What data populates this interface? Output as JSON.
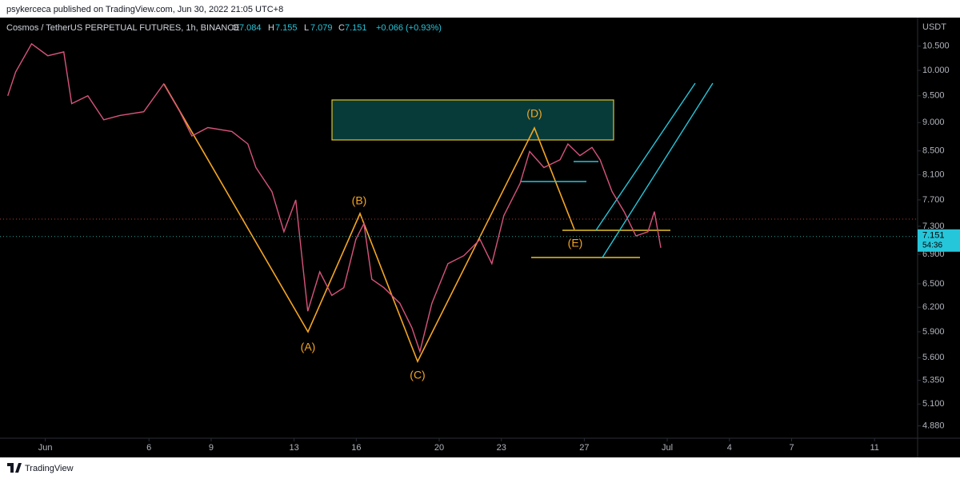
{
  "header": {
    "publisher": "psykerceca published on TradingView.com, Jun 30, 2022 21:05 UTC+8"
  },
  "footer": {
    "brand": "TradingView"
  },
  "chart_data": {
    "type": "line",
    "title": "Cosmos / TetherUS PERPETUAL FUTURES, 1h, BINANCE",
    "ohlc": {
      "o_label": "O",
      "o": 7.084,
      "h_label": "H",
      "h": 7.155,
      "l_label": "L",
      "l": 7.079,
      "c_label": "C",
      "c": 7.151,
      "change": "+0.066 (+0.93%)"
    },
    "y_unit": "USDT",
    "last_price": 7.151,
    "countdown": "54:36",
    "color": "#d7547c",
    "log_scale": true,
    "x": [
      -0.81,
      -0.43,
      0.34,
      1.12,
      1.89,
      2.27,
      3.05,
      3.82,
      4.59,
      5.75,
      6.71,
      7.49,
      8.07,
      8.84,
      10.0,
      10.77,
      11.16,
      11.93,
      12.51,
      13.08,
      13.66,
      14.24,
      14.82,
      15.4,
      15.98,
      16.37,
      16.75,
      17.33,
      18.1,
      18.68,
      19.07,
      19.65,
      20.42,
      21.19,
      21.97,
      22.54,
      23.12,
      23.9,
      24.36,
      25.05,
      25.83,
      26.21,
      26.79,
      27.37,
      27.76,
      28.34,
      28.92,
      29.49,
      30.07,
      30.38,
      30.69
    ],
    "values": [
      9.5,
      9.97,
      10.55,
      10.3,
      10.38,
      9.35,
      9.5,
      9.05,
      9.13,
      9.2,
      9.73,
      9.2,
      8.76,
      8.91,
      8.84,
      8.62,
      8.22,
      7.83,
      7.22,
      7.7,
      6.15,
      6.66,
      6.35,
      6.45,
      7.11,
      7.34,
      6.56,
      6.45,
      6.25,
      5.95,
      5.67,
      6.25,
      6.77,
      6.88,
      7.11,
      6.77,
      7.46,
      7.96,
      8.49,
      8.22,
      8.35,
      8.62,
      8.42,
      8.56,
      8.35,
      7.83,
      7.52,
      7.16,
      7.22,
      7.52,
      6.99
    ],
    "xlim": [
      -0.8,
      43
    ],
    "xticks": [
      {
        "value": 1,
        "label": "Jun"
      },
      6,
      9,
      13,
      16,
      20,
      23,
      27,
      {
        "value": 31,
        "label": "Jul"
      },
      {
        "value": 34,
        "label": "4"
      },
      {
        "value": 37,
        "label": "7"
      },
      {
        "value": 41,
        "label": "11"
      }
    ],
    "ylim": [
      4.76,
      11.07
    ],
    "yticks": [
      {
        "value": 10.5,
        "label": "10.500"
      },
      {
        "value": 10.0,
        "label": "10.000"
      },
      {
        "value": 9.5,
        "label": "9.500"
      },
      {
        "value": 9.0,
        "label": "9.000"
      },
      {
        "value": 8.5,
        "label": "8.500"
      },
      {
        "value": 8.1,
        "label": "8.100"
      },
      {
        "value": 7.7,
        "label": "7.700"
      },
      {
        "value": 7.3,
        "label": "7.300"
      },
      {
        "value": 6.9,
        "label": "6.900"
      },
      {
        "value": 6.5,
        "label": "6.500"
      },
      {
        "value": 6.2,
        "label": "6.200"
      },
      {
        "value": 5.9,
        "label": "5.900"
      },
      {
        "value": 5.6,
        "label": "5.600"
      },
      {
        "value": 5.35,
        "label": "5.350"
      },
      {
        "value": 5.1,
        "label": "5.100"
      },
      {
        "value": 4.88,
        "label": "4.880"
      }
    ],
    "wave_labels": [
      "(A)",
      "(B)",
      "(C)",
      "(D)",
      "(E)"
    ]
  }
}
